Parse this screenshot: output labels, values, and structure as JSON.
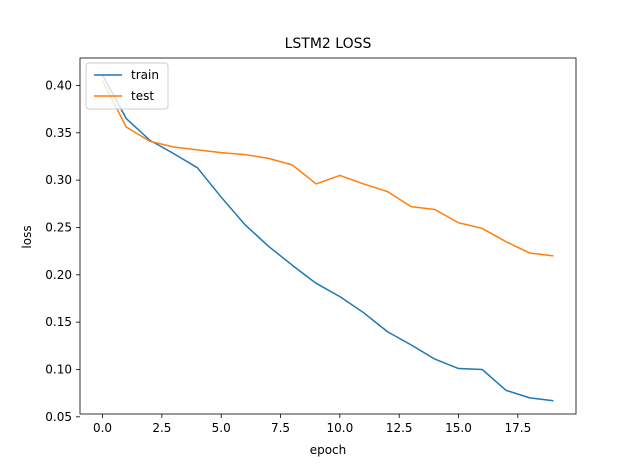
{
  "chart_data": {
    "type": "line",
    "title": "LSTM2 LOSS",
    "xlabel": "epoch",
    "ylabel": "loss",
    "xlim": [
      -0.95,
      19.95
    ],
    "ylim": [
      0.053,
      0.429
    ],
    "xticks": [
      0.0,
      2.5,
      5.0,
      7.5,
      10.0,
      12.5,
      15.0,
      17.5
    ],
    "xtick_labels": [
      "0.0",
      "2.5",
      "5.0",
      "7.5",
      "10.0",
      "12.5",
      "15.0",
      "17.5"
    ],
    "yticks": [
      0.05,
      0.1,
      0.15,
      0.2,
      0.25,
      0.3,
      0.35,
      0.4
    ],
    "ytick_labels": [
      "0.05",
      "0.10",
      "0.15",
      "0.20",
      "0.25",
      "0.30",
      "0.35",
      "0.40"
    ],
    "grid": false,
    "legend_position": "upper-left",
    "x": [
      0,
      1,
      2,
      3,
      4,
      5,
      6,
      7,
      8,
      9,
      10,
      11,
      12,
      13,
      14,
      15,
      16,
      17,
      18,
      19
    ],
    "series": [
      {
        "name": "train",
        "color": "#1f77b4",
        "values": [
          0.411,
          0.365,
          0.342,
          0.328,
          0.313,
          0.282,
          0.253,
          0.23,
          0.21,
          0.191,
          0.177,
          0.16,
          0.14,
          0.126,
          0.111,
          0.101,
          0.1,
          0.078,
          0.07,
          0.067
        ]
      },
      {
        "name": "test",
        "color": "#ff7f0e",
        "values": [
          0.405,
          0.356,
          0.341,
          0.335,
          0.332,
          0.329,
          0.327,
          0.323,
          0.316,
          0.296,
          0.305,
          0.296,
          0.288,
          0.272,
          0.269,
          0.255,
          0.249,
          0.235,
          0.223,
          0.22
        ]
      }
    ]
  }
}
